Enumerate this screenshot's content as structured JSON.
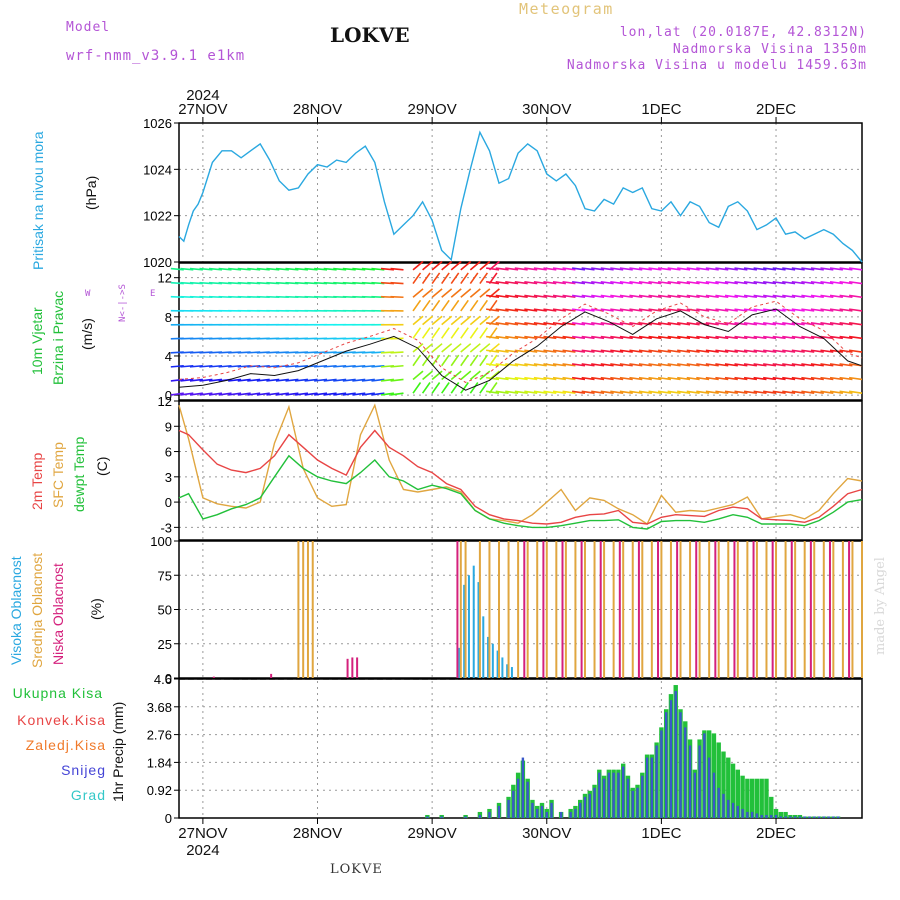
{
  "header": {
    "model_label": "Model",
    "model_name": "wrf-nmm_v3.9.1  e1km",
    "station": "LOKVE",
    "meteogram": "Meteogram",
    "lonlat": "lon,lat (20.0187E, 42.8312N)",
    "elevation": "Nadmorska Visina 1350m",
    "model_elevation": "Nadmorska Visina u modelu 1459.63m",
    "credit": "made by Angel",
    "footer_station": "LOKVE"
  },
  "time_axis": {
    "year": "2024",
    "dates": [
      "27NOV",
      "28NOV",
      "29NOV",
      "30NOV",
      "1DEC",
      "2DEC"
    ],
    "start_hour_offset": -5,
    "end_hour_offset": 138
  },
  "panels": {
    "pressure": {
      "label": "Pritisak na nivou mora",
      "unit": "(hPa)",
      "color": "#2aa8e0"
    },
    "wind": {
      "label1": "10m Vjetar",
      "label2": "Brzina i Pravac",
      "unit": "(m/s)",
      "color": "#22c03a",
      "compass": "N<-|->S",
      "w": "W",
      "e": "E"
    },
    "temp": {
      "label1": "2m Temp",
      "label2": "SFC Temp",
      "label3": "dewpt Temp",
      "unit": "(C)",
      "c1": "#e84545",
      "c2": "#e0a640",
      "c3": "#22c03a"
    },
    "cloud": {
      "label1": "Visoka Oblacnost",
      "label2": "Srednja Oblacnost",
      "label3": "Niska Oblacnost",
      "unit": "(%)",
      "c1": "#2aa8e0",
      "c2": "#e0a640",
      "c3": "#d4207c"
    },
    "precip": {
      "unit": "1hr Precip (mm)",
      "legend": [
        {
          "label": "Ukupna  Kisa",
          "color": "#22c03a"
        },
        {
          "label": "Konvek.Kisa",
          "color": "#e84545"
        },
        {
          "label": "Zaledj.Kisa",
          "color": "#f07a2a"
        },
        {
          "label": "Snijeg",
          "color": "#4444d6"
        },
        {
          "label": "Grad",
          "color": "#33c8c8"
        }
      ]
    }
  },
  "chart_data": [
    {
      "type": "line",
      "title": "Pritisak na nivou mora",
      "ylabel": "(hPa)",
      "ylim": [
        1020,
        1026
      ],
      "yticks": [
        1020,
        1022,
        1024,
        1026
      ],
      "x_hours": [
        -5,
        -4,
        -3,
        -2,
        -1,
        0,
        2,
        4,
        6,
        8,
        10,
        12,
        14,
        16,
        18,
        20,
        22,
        24,
        26,
        28,
        30,
        32,
        34,
        36,
        38,
        40,
        42,
        44,
        46,
        48,
        50,
        52,
        54,
        56,
        58,
        60,
        62,
        64,
        66,
        68,
        70,
        72,
        74,
        76,
        78,
        80,
        82,
        84,
        86,
        88,
        90,
        92,
        94,
        96,
        98,
        100,
        102,
        104,
        106,
        108,
        110,
        112,
        114,
        116,
        118,
        120,
        122,
        124,
        126,
        128,
        130,
        132,
        134,
        136,
        138
      ],
      "values": [
        1021.1,
        1020.9,
        1021.6,
        1022.2,
        1022.5,
        1023.0,
        1024.3,
        1024.8,
        1024.8,
        1024.5,
        1024.8,
        1025.1,
        1024.4,
        1023.5,
        1023.1,
        1023.2,
        1023.8,
        1024.2,
        1024.1,
        1024.4,
        1024.3,
        1024.7,
        1025.0,
        1024.3,
        1022.6,
        1021.2,
        1021.6,
        1022.0,
        1022.6,
        1021.8,
        1020.5,
        1020.1,
        1022.3,
        1024.0,
        1025.6,
        1024.8,
        1023.4,
        1023.6,
        1024.7,
        1025.1,
        1024.8,
        1023.8,
        1023.5,
        1023.8,
        1023.3,
        1022.3,
        1022.2,
        1022.7,
        1022.5,
        1023.2,
        1023.0,
        1023.2,
        1022.3,
        1022.2,
        1022.6,
        1022.0,
        1022.6,
        1022.4,
        1021.7,
        1021.5,
        1022.4,
        1022.6,
        1022.2,
        1021.4,
        1021.6,
        1021.9,
        1021.2,
        1021.3,
        1021.0,
        1021.2,
        1021.4,
        1021.2,
        1020.8,
        1020.5,
        1020.0
      ]
    },
    {
      "type": "line",
      "title": "10m Vjetar Brzina i Pravac",
      "ylabel": "(m/s)",
      "ylim": [
        -0.5,
        13.5
      ],
      "yticks": [
        0,
        4,
        8,
        12
      ],
      "series": [
        {
          "name": "Brzina",
          "x_hours": [
            -5,
            0,
            5,
            10,
            15,
            20,
            25,
            30,
            35,
            40,
            45,
            50,
            55,
            60,
            65,
            70,
            75,
            80,
            85,
            90,
            95,
            100,
            105,
            110,
            115,
            120,
            125,
            130,
            135,
            138
          ],
          "values": [
            0.8,
            1.0,
            1.5,
            2.2,
            2.0,
            2.5,
            3.5,
            4.5,
            5.2,
            6.0,
            4.8,
            2.0,
            0.5,
            1.5,
            3.5,
            5.0,
            7.0,
            8.5,
            7.5,
            6.2,
            7.8,
            8.6,
            7.2,
            6.5,
            8.2,
            8.8,
            7.0,
            5.8,
            3.5,
            3.0
          ]
        }
      ]
    },
    {
      "type": "line",
      "title": "2m Temp / SFC Temp / dewpt Temp",
      "ylabel": "(C)",
      "ylim": [
        -4.5,
        12
      ],
      "yticks": [
        -3,
        0,
        3,
        6,
        9,
        12
      ],
      "x_hours": [
        -5,
        -3,
        0,
        3,
        6,
        9,
        12,
        15,
        18,
        21,
        24,
        27,
        30,
        33,
        36,
        39,
        42,
        45,
        48,
        51,
        54,
        57,
        60,
        63,
        66,
        69,
        72,
        75,
        78,
        81,
        84,
        87,
        90,
        93,
        96,
        99,
        102,
        105,
        108,
        111,
        114,
        117,
        120,
        123,
        126,
        129,
        132,
        135,
        138
      ],
      "series": [
        {
          "name": "2m Temp",
          "values": [
            8.5,
            8.0,
            6.2,
            4.5,
            3.8,
            3.5,
            4.0,
            5.5,
            8.0,
            6.5,
            5.0,
            4.0,
            3.2,
            6.5,
            8.5,
            6.5,
            5.5,
            4.2,
            3.5,
            2.2,
            1.5,
            -0.5,
            -1.5,
            -2.0,
            -2.2,
            -2.5,
            -2.6,
            -2.4,
            -1.8,
            -1.5,
            -1.4,
            -1.0,
            -2.4,
            -2.6,
            -1.8,
            -1.5,
            -1.6,
            -1.7,
            -1.0,
            -0.6,
            -0.8,
            -2.0,
            -2.1,
            -2.2,
            -2.4,
            -1.8,
            -0.5,
            1.0,
            1.5
          ]
        },
        {
          "name": "SFC Temp",
          "values": [
            11.5,
            7.5,
            0.5,
            -0.2,
            -0.5,
            -0.7,
            0.0,
            7.0,
            11.3,
            4.0,
            0.5,
            -0.5,
            -0.3,
            8.0,
            11.5,
            5.0,
            1.5,
            1.2,
            1.5,
            1.8,
            1.2,
            -1.0,
            -2.0,
            -2.2,
            -2.5,
            -1.5,
            0.0,
            1.5,
            -1.0,
            0.5,
            0.2,
            -0.8,
            -1.5,
            -2.6,
            0.8,
            -1.2,
            -1.0,
            -1.1,
            -0.7,
            -0.3,
            0.6,
            -2.0,
            -1.7,
            -1.5,
            -2.0,
            -1.0,
            1.0,
            2.8,
            2.5
          ]
        },
        {
          "name": "dewpt Temp",
          "values": [
            0.5,
            1.0,
            -2.0,
            -1.5,
            -0.8,
            -0.3,
            0.5,
            3.0,
            5.5,
            4.0,
            3.0,
            2.5,
            2.2,
            3.5,
            5.0,
            3.0,
            2.5,
            1.5,
            2.0,
            1.6,
            1.0,
            -1.0,
            -2.0,
            -2.5,
            -2.8,
            -3.0,
            -3.0,
            -2.8,
            -2.5,
            -2.2,
            -2.2,
            -2.1,
            -3.0,
            -3.2,
            -2.3,
            -2.2,
            -2.2,
            -2.4,
            -2.0,
            -1.5,
            -1.8,
            -2.6,
            -2.6,
            -2.6,
            -2.8,
            -2.2,
            -1.2,
            0.0,
            0.3
          ]
        }
      ]
    },
    {
      "type": "bar",
      "title": "Visoka / Srednja / Niska Oblacnost",
      "ylabel": "(%)",
      "ylim": [
        0,
        100
      ],
      "yticks": [
        0,
        25,
        50,
        75,
        100
      ],
      "series": [
        {
          "name": "Visoka Oblacnost",
          "x_hours": [
            54,
            55,
            56,
            57,
            58,
            59,
            60,
            61,
            62,
            63,
            64,
            65
          ],
          "values": [
            22,
            68,
            75,
            82,
            70,
            45,
            30,
            25,
            20,
            15,
            10,
            8
          ]
        },
        {
          "name": "Srednja Oblacnost",
          "x_hours": [
            20,
            21,
            22,
            23,
            54,
            55,
            58,
            60,
            62,
            64,
            66,
            68,
            70,
            72,
            74,
            76,
            78,
            80,
            82,
            84,
            86,
            88,
            90,
            92,
            94,
            96,
            98,
            100,
            102,
            104,
            106,
            108,
            110,
            112,
            114,
            116,
            118,
            120,
            122,
            124,
            126,
            128,
            130,
            132,
            134,
            136,
            138
          ],
          "values": [
            100,
            100,
            100,
            100,
            100,
            100,
            100,
            100,
            100,
            100,
            100,
            100,
            100,
            100,
            100,
            100,
            100,
            100,
            100,
            100,
            100,
            100,
            100,
            100,
            100,
            100,
            100,
            100,
            100,
            100,
            100,
            100,
            100,
            100,
            100,
            100,
            100,
            100,
            100,
            100,
            100,
            100,
            100,
            100,
            100,
            100,
            100
          ]
        },
        {
          "name": "Niska Oblacnost",
          "x_hours": [
            2,
            14,
            30,
            31,
            32,
            53,
            67,
            71,
            75,
            79,
            83,
            87,
            91,
            95,
            99,
            103,
            107,
            111,
            115,
            119,
            123,
            127,
            131,
            135
          ],
          "values": [
            1,
            3,
            14,
            15,
            15,
            100,
            100,
            100,
            100,
            100,
            100,
            100,
            100,
            100,
            100,
            100,
            100,
            100,
            100,
            100,
            100,
            100,
            100,
            100
          ]
        }
      ]
    },
    {
      "type": "bar",
      "title": "1hr Precip",
      "ylabel": "1hr Precip (mm)",
      "ylim": [
        0,
        4.6
      ],
      "yticks": [
        0,
        0.92,
        1.84,
        2.76,
        3.68,
        4.6
      ],
      "x_hours": [
        47,
        50,
        55,
        58,
        60,
        62,
        64,
        65,
        66,
        67,
        68,
        69,
        70,
        71,
        72,
        73,
        75,
        77,
        78,
        79,
        80,
        81,
        82,
        83,
        84,
        85,
        86,
        87,
        88,
        89,
        90,
        91,
        92,
        93,
        94,
        95,
        96,
        97,
        98,
        99,
        100,
        101,
        102,
        103,
        104,
        105,
        106,
        107,
        108,
        109,
        110,
        111,
        112,
        113,
        114,
        115,
        116,
        117,
        118,
        119,
        120,
        121,
        122,
        123,
        124,
        125,
        126,
        127,
        128,
        129,
        130,
        131,
        132,
        133
      ],
      "series": [
        {
          "name": "Ukupna Kisa",
          "values": [
            0.1,
            0.1,
            0.1,
            0.2,
            0.3,
            0.5,
            0.7,
            1.1,
            1.5,
            1.9,
            1.3,
            0.6,
            0.4,
            0.5,
            0.3,
            0.6,
            0.2,
            0.3,
            0.4,
            0.6,
            0.8,
            0.9,
            1.1,
            1.6,
            1.4,
            1.6,
            1.6,
            1.6,
            1.8,
            1.4,
            1.0,
            1.1,
            1.5,
            2.1,
            2.1,
            2.5,
            3.0,
            3.6,
            4.1,
            4.4,
            3.6,
            3.2,
            2.6,
            1.6,
            2.6,
            2.9,
            2.9,
            2.8,
            2.5,
            2.2,
            2.0,
            1.8,
            1.6,
            1.4,
            1.3,
            1.3,
            1.3,
            1.3,
            1.3,
            0.7,
            0.3,
            0.2,
            0.2,
            0.1,
            0.1,
            0.1,
            0.05,
            0.05,
            0.05,
            0.05,
            0.05,
            0.05,
            0.05,
            0.05
          ]
        },
        {
          "name": "Snijeg",
          "values": [
            0.05,
            0.05,
            0.05,
            0.1,
            0.2,
            0.4,
            0.6,
            0.9,
            1.3,
            2.0,
            1.2,
            0.5,
            0.3,
            0.4,
            0.2,
            0.5,
            0.2,
            0.2,
            0.3,
            0.5,
            0.7,
            0.8,
            1.0,
            1.5,
            1.3,
            1.5,
            1.5,
            1.5,
            1.7,
            1.3,
            0.9,
            1.0,
            1.4,
            2.0,
            2.0,
            2.4,
            2.9,
            3.5,
            3.9,
            4.2,
            3.5,
            3.0,
            2.4,
            1.5,
            2.4,
            2.8,
            2.0,
            1.5,
            1.0,
            0.8,
            0.6,
            0.5,
            0.4,
            0.3,
            0.2,
            0.2,
            0.15,
            0.1,
            0.1,
            0.1,
            0.1,
            0.05,
            0.05,
            0.05,
            0.05,
            0.05,
            0.05,
            0.05,
            0.05,
            0.05,
            0.05,
            0.05,
            0.05,
            0.05
          ]
        }
      ]
    }
  ]
}
